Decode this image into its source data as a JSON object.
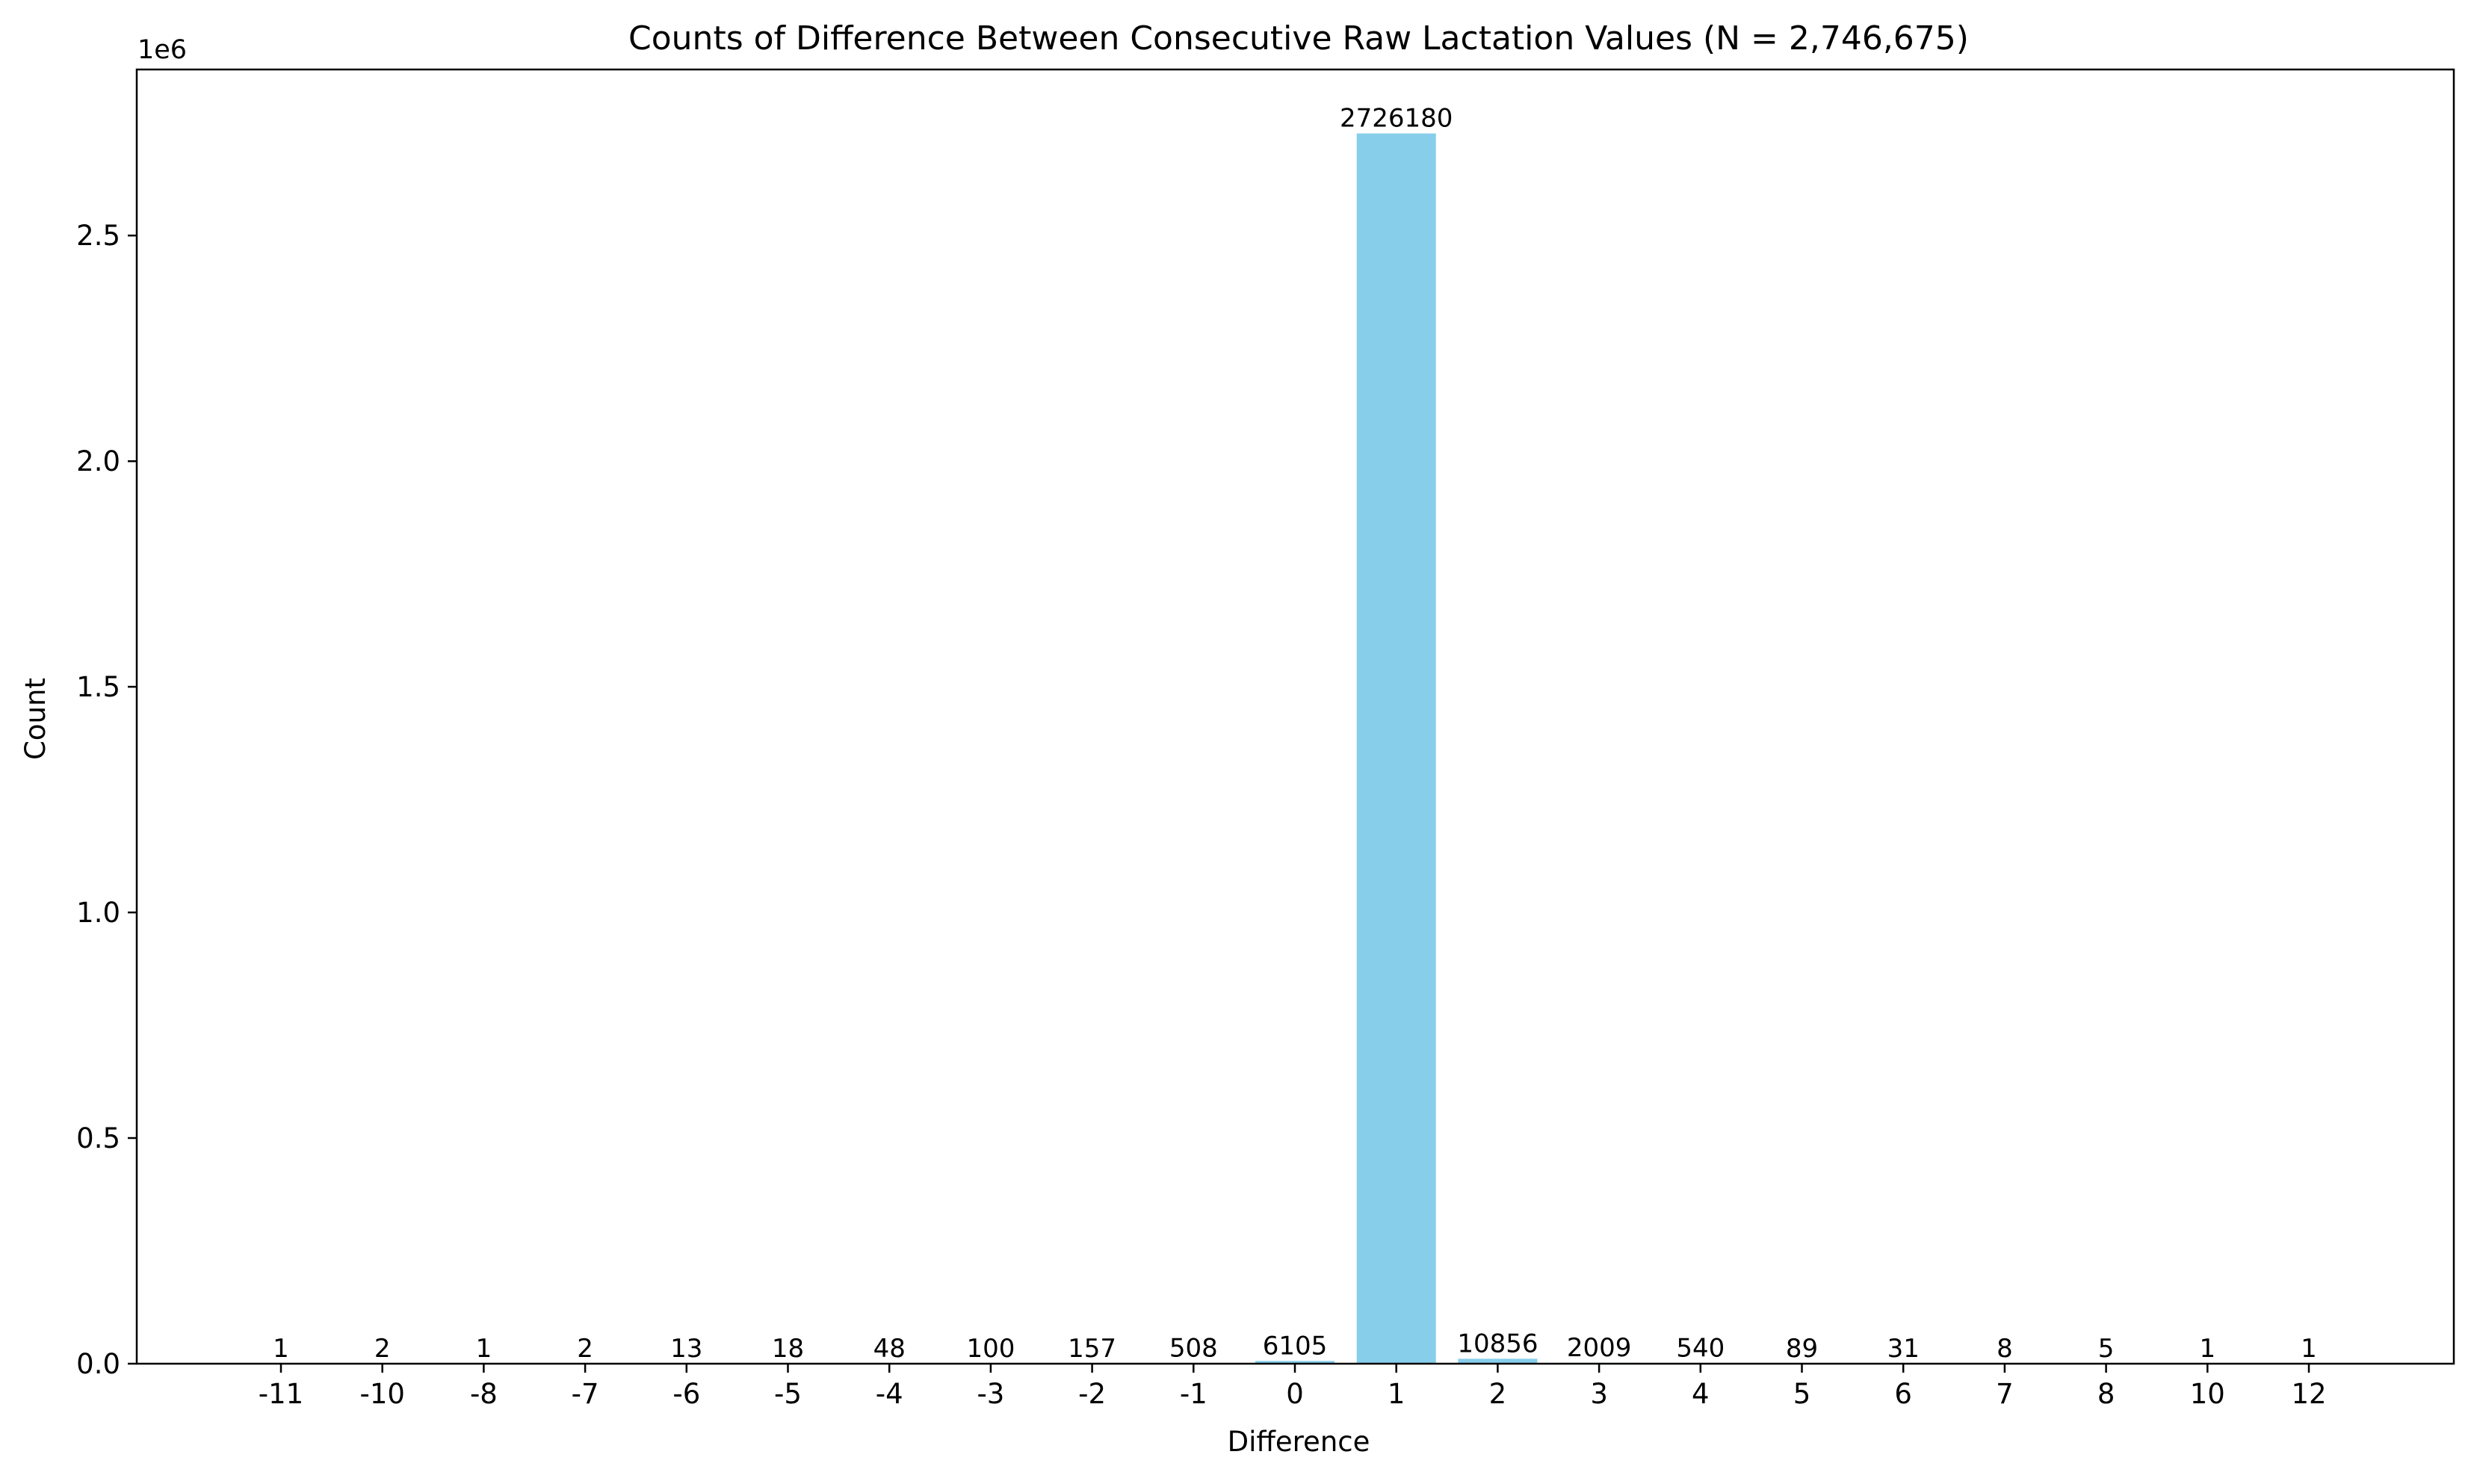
{
  "chart_data": {
    "type": "bar",
    "title": "Counts of Difference Between Consecutive Raw Lactation Values (N = 2,746,675)",
    "xlabel": "Difference",
    "ylabel": "Count",
    "y_scale_label": "1e6",
    "categories": [
      "-11",
      "-10",
      "-8",
      "-7",
      "-6",
      "-5",
      "-4",
      "-3",
      "-2",
      "-1",
      "0",
      "1",
      "2",
      "3",
      "4",
      "5",
      "6",
      "7",
      "8",
      "10",
      "12"
    ],
    "values": [
      1,
      2,
      1,
      2,
      13,
      18,
      48,
      100,
      157,
      508,
      6105,
      2726180,
      10856,
      2009,
      540,
      89,
      31,
      8,
      5,
      1,
      1
    ],
    "ylim": [
      0,
      2868000
    ],
    "yticks": [
      0,
      500000,
      1000000,
      1500000,
      2000000,
      2500000
    ],
    "ytick_labels": [
      "0.0",
      "0.5",
      "1.0",
      "1.5",
      "2.0",
      "2.5"
    ],
    "bar_color": "#87ceeb",
    "grid": false,
    "legend": "none",
    "data_labels": true
  }
}
